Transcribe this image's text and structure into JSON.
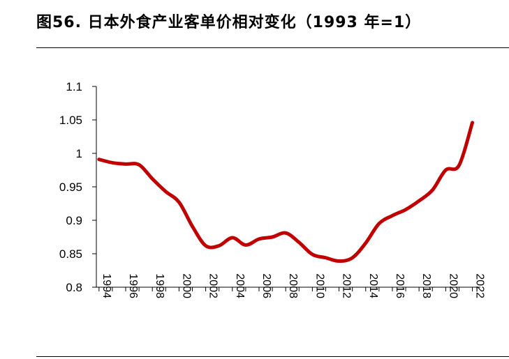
{
  "figure": {
    "title": "图56. 日本外食产业客单价相对变化（1993 年=1）"
  },
  "chart_data": {
    "type": "line",
    "title": "",
    "xlabel": "",
    "ylabel": "",
    "xlim": [
      1993.8,
      2022.6
    ],
    "ylim": [
      0.8,
      1.1
    ],
    "yticks": [
      "0.8",
      "0.85",
      "0.9",
      "0.95",
      "1",
      "1.05",
      "1.1"
    ],
    "xticks": [
      "1994",
      "1996",
      "1998",
      "2000",
      "2002",
      "2004",
      "2006",
      "2008",
      "2010",
      "2012",
      "2014",
      "2016",
      "2018",
      "2020",
      "2022"
    ],
    "grid": false,
    "legend": "none",
    "line_color": "#C00000",
    "series": [
      {
        "x": [
          1994,
          1995,
          1996,
          1997,
          1998,
          1999,
          2000,
          2001,
          2002,
          2003,
          2004,
          2005,
          2006,
          2007,
          2008,
          2009,
          2010,
          2011,
          2012,
          2013,
          2014,
          2015,
          2016,
          2017,
          2018,
          2019,
          2020,
          2021,
          2022
        ],
        "values": [
          0.991,
          0.986,
          0.984,
          0.983,
          0.962,
          0.943,
          0.927,
          0.891,
          0.862,
          0.862,
          0.874,
          0.863,
          0.872,
          0.875,
          0.881,
          0.867,
          0.849,
          0.844,
          0.839,
          0.844,
          0.866,
          0.895,
          0.907,
          0.916,
          0.929,
          0.945,
          0.975,
          0.982,
          1.046
        ]
      }
    ]
  }
}
